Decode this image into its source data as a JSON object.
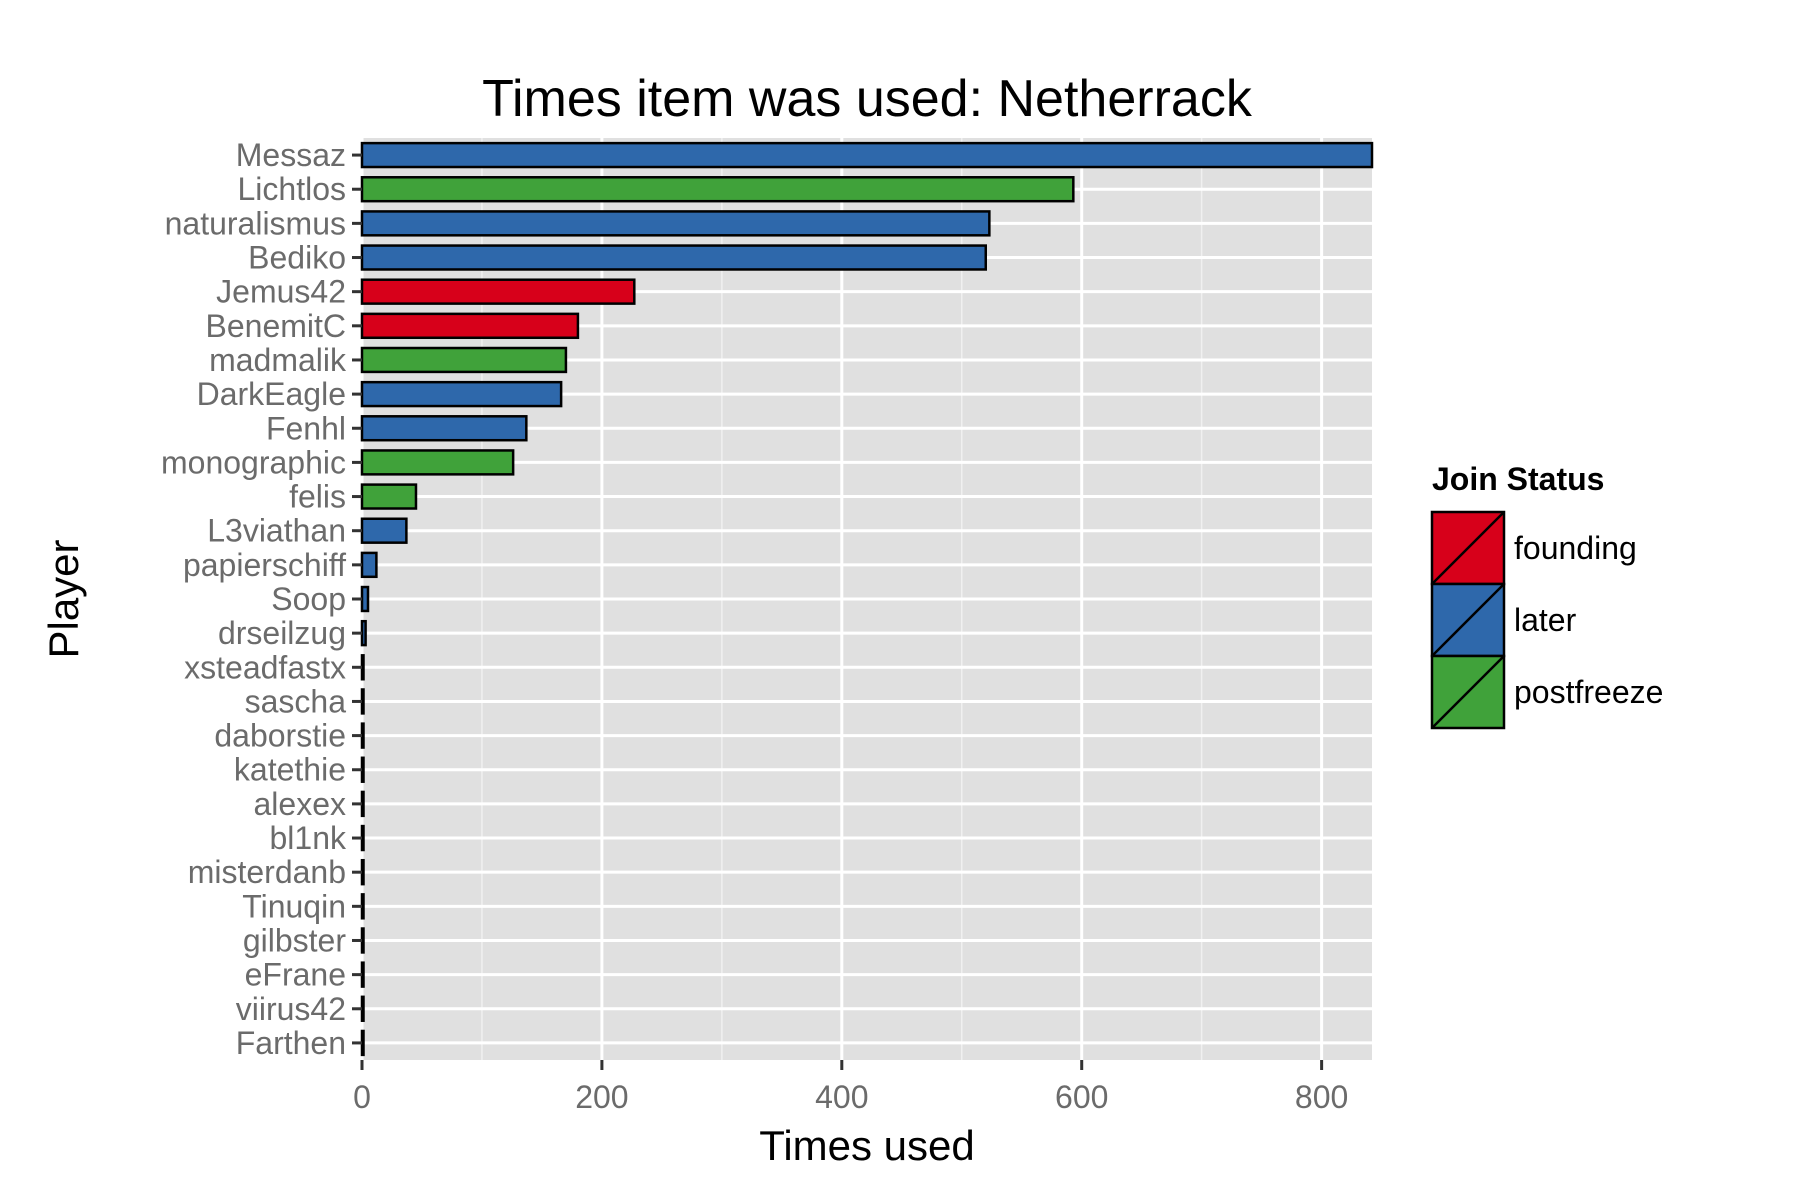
{
  "chart_data": {
    "type": "bar",
    "orientation": "horizontal",
    "title": "Times item was used: Netherrack",
    "xlabel": "Times used",
    "ylabel": "Player",
    "xlim": [
      0,
      842
    ],
    "xticks": [
      0,
      200,
      400,
      600,
      800
    ],
    "grid": true,
    "legend": {
      "title": "Join Status",
      "placement": "right",
      "entries": [
        {
          "name": "founding",
          "color": "#d7001a"
        },
        {
          "name": "later",
          "color": "#2e68ab"
        },
        {
          "name": "postfreeze",
          "color": "#40a23a"
        }
      ]
    },
    "categories": [
      "Messaz",
      "Lichtlos",
      "naturalismus",
      "Bediko",
      "Jemus42",
      "BenemitC",
      "madmalik",
      "DarkEagle",
      "Fenhl",
      "monographic",
      "felis",
      "L3viathan",
      "papierschiff",
      "Soop",
      "drseilzug",
      "xsteadfastx",
      "sascha",
      "daborstie",
      "katethie",
      "alexex",
      "bl1nk",
      "misterdanb",
      "Tinuqin",
      "gilbster",
      "eFrane",
      "viirus42",
      "Farthen"
    ],
    "values": [
      842,
      593,
      523,
      520,
      227,
      180,
      170,
      166,
      137,
      126,
      45,
      37,
      12,
      5,
      3,
      1,
      1,
      1,
      1,
      1,
      1,
      1,
      1,
      1,
      1,
      1,
      1
    ],
    "groups": [
      "later",
      "postfreeze",
      "later",
      "later",
      "founding",
      "founding",
      "postfreeze",
      "later",
      "later",
      "postfreeze",
      "postfreeze",
      "later",
      "later",
      "later",
      "later",
      "later",
      "later",
      "later",
      "later",
      "later",
      "later",
      "later",
      "later",
      "later",
      "later",
      "later",
      "later"
    ]
  }
}
